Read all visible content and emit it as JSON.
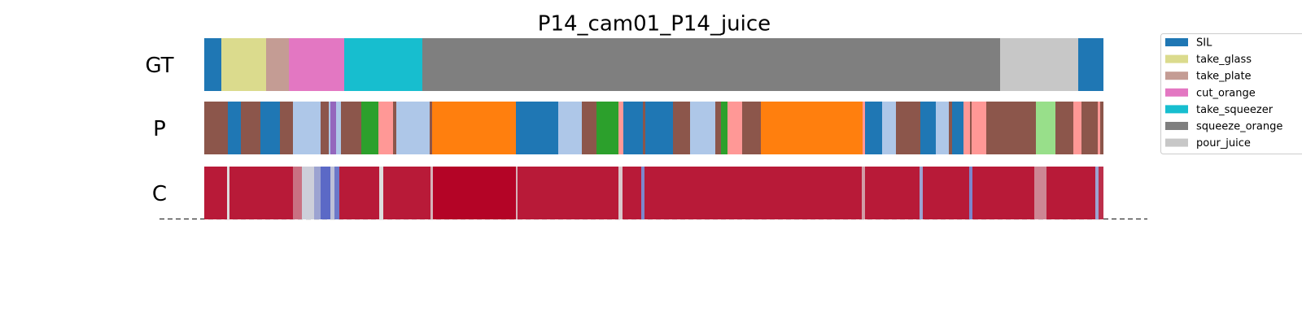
{
  "chart_data": {
    "type": "segmentation",
    "title": "P14_cam01_P14_juice",
    "xlim": [
      0,
      1105
    ],
    "legend": "upper right",
    "colormap": [
      "#3b4cc0",
      "#dddddd",
      "#b40426"
    ],
    "legend_entries": [
      {
        "name": "SIL",
        "color": "#1f77b4"
      },
      {
        "name": "take_glass",
        "color": "#dbdb8d"
      },
      {
        "name": "take_plate",
        "color": "#c49c94"
      },
      {
        "name": "cut_orange",
        "color": "#e377c2"
      },
      {
        "name": "take_squeezer",
        "color": "#17becf"
      },
      {
        "name": "squeeze_orange",
        "color": "#7f7f7f"
      },
      {
        "name": "pour_juice",
        "color": "#c7c7c7"
      }
    ],
    "rows": [
      {
        "name": "GT",
        "starts": [
          0,
          21,
          76,
          104,
          172,
          268,
          978,
          1074
        ],
        "ends": [
          21,
          76,
          104,
          172,
          268,
          978,
          1074,
          1105
        ],
        "colors": [
          "#1f77b4",
          "#dbdb8d",
          "#c49c94",
          "#e377c2",
          "#17becf",
          "#7f7f7f",
          "#c7c7c7",
          "#1f77b4"
        ]
      },
      {
        "name": "P",
        "starts": [
          0,
          29,
          45,
          69,
          93,
          109,
          143,
          153,
          155,
          162,
          168,
          193,
          214,
          232,
          236,
          277,
          280,
          383,
          435,
          464,
          482,
          509,
          515,
          539,
          542,
          576,
          597,
          628,
          635,
          643,
          661,
          684,
          809,
          812,
          833,
          850,
          880,
          899,
          915,
          919,
          933,
          941,
          943,
          961,
          1022,
          1046,
          1068,
          1078,
          1098,
          1101
        ],
        "ends": [
          29,
          45,
          69,
          93,
          109,
          143,
          153,
          155,
          162,
          168,
          193,
          214,
          232,
          236,
          277,
          280,
          383,
          435,
          464,
          482,
          509,
          515,
          539,
          542,
          576,
          597,
          628,
          635,
          643,
          661,
          684,
          809,
          812,
          833,
          850,
          880,
          899,
          915,
          919,
          933,
          941,
          943,
          961,
          1022,
          1046,
          1068,
          1078,
          1098,
          1101,
          1105
        ],
        "colors": [
          "#8c564b",
          "#1f77b4",
          "#8c564b",
          "#1f77b4",
          "#8c564b",
          "#aec7e8",
          "#8c564b",
          "#aec7e8",
          "#9467bd",
          "#aec7e8",
          "#8c564b",
          "#2ca02c",
          "#ff9896",
          "#8c564b",
          "#aec7e8",
          "#8c564b",
          "#ff7f0e",
          "#1f77b4",
          "#aec7e8",
          "#8c564b",
          "#2ca02c",
          "#ff9896",
          "#1f77b4",
          "#8c564b",
          "#1f77b4",
          "#8c564b",
          "#aec7e8",
          "#8c564b",
          "#2ca02c",
          "#ff9896",
          "#8c564b",
          "#ff7f0e",
          "#ff9896",
          "#1f77b4",
          "#aec7e8",
          "#8c564b",
          "#1f77b4",
          "#aec7e8",
          "#8c564b",
          "#1f77b4",
          "#ff9896",
          "#8c564b",
          "#ff9896",
          "#8c564b",
          "#98df8a",
          "#8c564b",
          "#ff9896",
          "#8c564b",
          "#ff9896",
          "#8c564b"
        ]
      },
      {
        "name": "C",
        "starts": [
          0,
          28,
          31,
          109,
          120,
          135,
          143,
          155,
          160,
          166,
          215,
          220,
          278,
          281,
          383,
          385,
          509,
          514,
          537,
          541,
          808,
          812,
          879,
          883,
          940,
          944,
          1020,
          1035,
          1095,
          1099
        ],
        "ends": [
          28,
          31,
          109,
          120,
          135,
          143,
          155,
          160,
          166,
          215,
          220,
          278,
          281,
          383,
          385,
          509,
          514,
          537,
          541,
          808,
          812,
          879,
          883,
          940,
          944,
          1020,
          1035,
          1095,
          1099,
          1105
        ],
        "values": [
          0.95,
          0.5,
          0.95,
          0.75,
          0.45,
          0.3,
          0.1,
          0.4,
          0.15,
          0.95,
          0.5,
          0.95,
          0.6,
          1,
          0.6,
          0.95,
          0.55,
          0.95,
          0.2,
          0.95,
          0.65,
          0.95,
          0.3,
          0.95,
          0.2,
          0.95,
          0.7,
          0.95,
          0.3,
          0.9
        ]
      }
    ]
  }
}
